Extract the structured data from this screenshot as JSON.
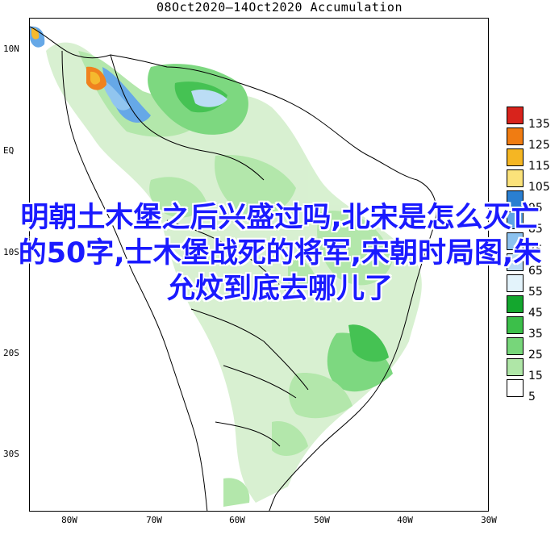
{
  "title": "08Oct2020—14Oct2020 Accumulation",
  "lat_labels": [
    "10N",
    "EQ",
    "10S",
    "20S",
    "30S"
  ],
  "lon_labels": [
    "80W",
    "70W",
    "60W",
    "50W",
    "40W",
    "30W"
  ],
  "legend": {
    "items": [
      {
        "label": "135",
        "color": "#d8231c"
      },
      {
        "label": "125",
        "color": "#f07c12"
      },
      {
        "label": "115",
        "color": "#f5b623"
      },
      {
        "label": "105",
        "color": "#fbe27a"
      },
      {
        "label": "95",
        "color": "#2a7fd1"
      },
      {
        "label": "85",
        "color": "#5ea4e6"
      },
      {
        "label": "75",
        "color": "#8cc2ef"
      },
      {
        "label": "65",
        "color": "#b8dcf5"
      },
      {
        "label": "55",
        "color": "#e3f3fb"
      },
      {
        "label": "45",
        "color": "#14a72e"
      },
      {
        "label": "35",
        "color": "#3cbf4a"
      },
      {
        "label": "25",
        "color": "#77d67a"
      },
      {
        "label": "15",
        "color": "#afe6a7"
      },
      {
        "label": "5",
        "color": "#ffffff"
      }
    ]
  },
  "overlay_text": "明朝土木堡之后兴盛过吗,北宋是怎么灭亡的50字,士木堡战死的将军,宋朝时局图,朱允炆到底去哪儿了",
  "colors": {
    "land_light": "#d6f0cf",
    "land_mid": "#afe6a7",
    "land_green": "#77d67a",
    "land_dark": "#3cbf4a",
    "blue": "#8cc2ef",
    "orange": "#f07c12"
  }
}
